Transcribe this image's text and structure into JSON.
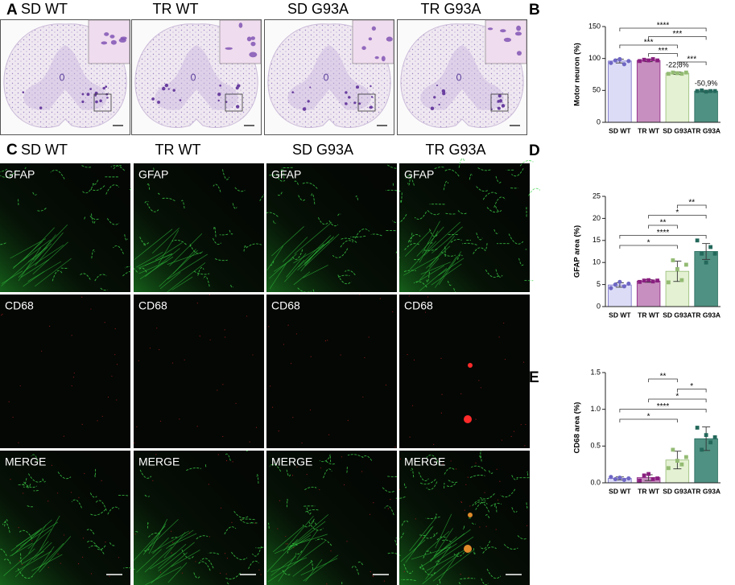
{
  "panel_labels": [
    "A",
    "B",
    "C",
    "D",
    "E"
  ],
  "panel_a": {
    "columns": [
      "SD WT",
      "TR WT",
      "SD G93A",
      "TR G93A"
    ]
  },
  "panel_c": {
    "columns": [
      "SD WT",
      "TR WT",
      "SD G93A",
      "TR G93A"
    ],
    "rows": [
      "GFAP",
      "CD68",
      "MERGE"
    ]
  },
  "chart_data": [
    {
      "type": "bar",
      "ylabel": "Motor neuron (%)",
      "categories": [
        "SD WT",
        "TR WT",
        "SD G93A",
        "TR G93A"
      ],
      "values": [
        96,
        97,
        77,
        49
      ],
      "errors": [
        3,
        2,
        2,
        1.5
      ],
      "points": [
        [
          93,
          97,
          99,
          91,
          96
        ],
        [
          96,
          98,
          97,
          99,
          97
        ],
        [
          76,
          78,
          77,
          76,
          78
        ],
        [
          49,
          50,
          48,
          49,
          49
        ]
      ],
      "colors": [
        "#dcdcf7",
        "#c78fbf",
        "#e4f1d2",
        "#4f9182"
      ],
      "edge_colors": [
        "#6f67c4",
        "#8a1f80",
        "#93bb73",
        "#23685b"
      ],
      "markers": [
        "circle",
        "square",
        "square",
        "square"
      ],
      "ylim": [
        0,
        150
      ],
      "yticks": [
        0,
        50,
        100,
        150
      ],
      "brackets": [
        {
          "text": "****",
          "from": "SD WT",
          "to": "TR G93A"
        },
        {
          "text": "***",
          "from": "TR WT",
          "to": "TR G93A"
        },
        {
          "text": "***",
          "from": "SD WT",
          "to": "SD G93A"
        },
        {
          "text": "***",
          "from": "TR WT",
          "to": "SD G93A"
        },
        {
          "text": "***",
          "from": "SD G93A",
          "to": "TR G93A"
        }
      ],
      "annotations": [
        {
          "text": "-22,8%",
          "category": "SD G93A"
        },
        {
          "text": "-50,9%",
          "category": "TR G93A"
        }
      ]
    },
    {
      "type": "bar",
      "ylabel": "GFAP area  (%)",
      "categories": [
        "SD WT",
        "TR WT",
        "SD G93A",
        "TR G93A"
      ],
      "values": [
        4.9,
        5.8,
        8.0,
        12.5
      ],
      "errors": [
        0.5,
        0.3,
        2.3,
        1.8
      ],
      "points": [
        [
          4.2,
          5.0,
          5.6,
          4.6,
          5.2
        ],
        [
          5.6,
          5.9,
          6.0,
          5.7,
          5.9
        ],
        [
          5.5,
          10.5,
          8.5,
          6.0,
          9.5
        ],
        [
          15.0,
          12.0,
          10.0,
          13.5,
          12.0
        ]
      ],
      "colors": [
        "#dcdcf7",
        "#c78fbf",
        "#e4f1d2",
        "#4f9182"
      ],
      "edge_colors": [
        "#6f67c4",
        "#8a1f80",
        "#93bb73",
        "#23685b"
      ],
      "markers": [
        "circle",
        "square",
        "square",
        "square"
      ],
      "ylim": [
        0,
        25
      ],
      "yticks": [
        0,
        5,
        10,
        15,
        20,
        25
      ],
      "brackets": [
        {
          "text": "**",
          "from": "SD G93A",
          "to": "TR G93A"
        },
        {
          "text": "*",
          "from": "TR WT",
          "to": "TR G93A"
        },
        {
          "text": "**",
          "from": "TR WT",
          "to": "SD G93A"
        },
        {
          "text": "****",
          "from": "SD WT",
          "to": "TR G93A"
        },
        {
          "text": "*",
          "from": "SD WT",
          "to": "SD G93A"
        }
      ]
    },
    {
      "type": "bar",
      "ylabel": "CD68 area  (%)",
      "categories": [
        "SD WT",
        "TR WT",
        "SD G93A",
        "TR G93A"
      ],
      "values": [
        0.06,
        0.07,
        0.31,
        0.6
      ],
      "errors": [
        0.02,
        0.04,
        0.12,
        0.16
      ],
      "points": [
        [
          0.08,
          0.05,
          0.07,
          0.04,
          0.06
        ],
        [
          0.03,
          0.1,
          0.12,
          0.05,
          0.06
        ],
        [
          0.2,
          0.45,
          0.3,
          0.25,
          0.35
        ],
        [
          0.75,
          0.45,
          0.65,
          0.55,
          0.62
        ]
      ],
      "colors": [
        "#dcdcf7",
        "#c78fbf",
        "#e4f1d2",
        "#4f9182"
      ],
      "edge_colors": [
        "#6f67c4",
        "#8a1f80",
        "#93bb73",
        "#23685b"
      ],
      "markers": [
        "circle",
        "square",
        "square",
        "square"
      ],
      "ylim": [
        0,
        1.5
      ],
      "yticks": [
        {
          "value": 0,
          "label": "0.0"
        },
        0.5,
        {
          "value": 1,
          "label": "1.0"
        },
        1.5
      ],
      "brackets": [
        {
          "text": "**",
          "from": "TR WT",
          "to": "SD G93A"
        },
        {
          "text": "*",
          "from": "SD G93A",
          "to": "TR G93A"
        },
        {
          "text": "*",
          "from": "TR WT",
          "to": "TR G93A"
        },
        {
          "text": "****",
          "from": "SD WT",
          "to": "TR G93A"
        },
        {
          "text": "*",
          "from": "SD WT",
          "to": "SD G93A"
        }
      ]
    }
  ]
}
